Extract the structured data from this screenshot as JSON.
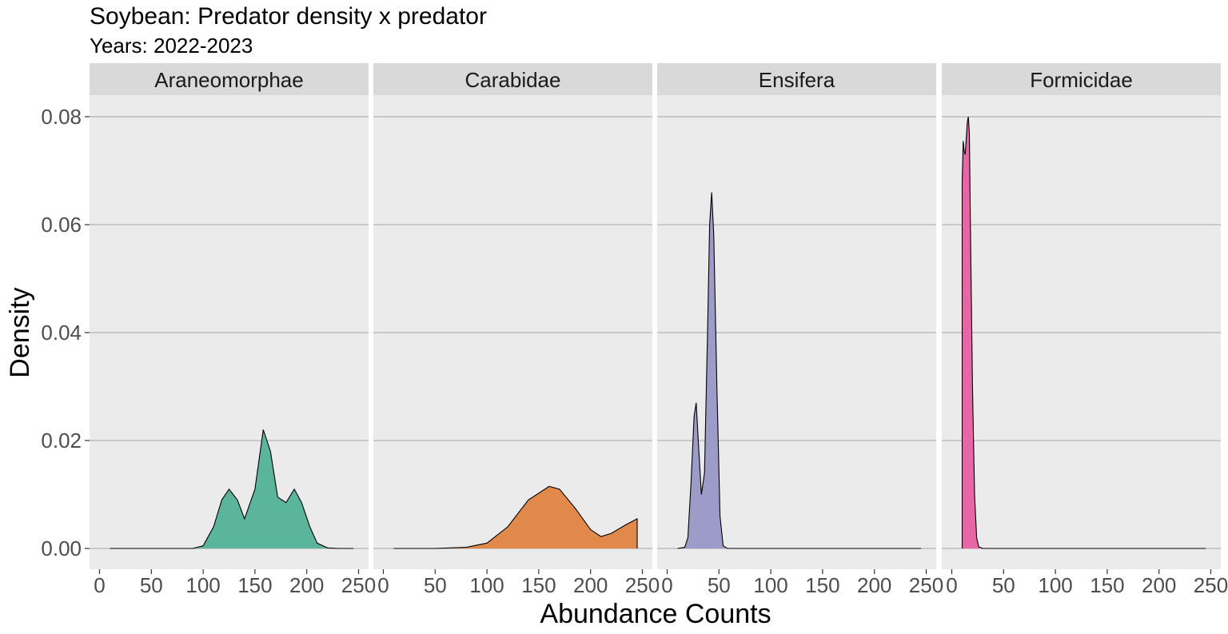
{
  "chart_data": {
    "type": "area",
    "title": "Soybean: Predator density x predator",
    "subtitle": "Years: 2022-2023",
    "xlabel": "Abundance Counts",
    "ylabel": "Density",
    "xlim": [
      0,
      250
    ],
    "ylim": [
      0,
      0.08
    ],
    "x_ticks": [
      0,
      50,
      100,
      150,
      200,
      250
    ],
    "x_tick_labels": [
      "0",
      "50",
      "100",
      "150",
      "200",
      "250"
    ],
    "y_ticks": [
      0,
      0.02,
      0.04,
      0.06,
      0.08
    ],
    "y_tick_labels": [
      "0.00",
      "0.02",
      "0.04",
      "0.06",
      "0.08"
    ],
    "grid": true,
    "legend": "none",
    "panels": [
      {
        "name": "Araneomorphae",
        "color": "#5bb59b",
        "x": [
          10,
          90,
          100,
          110,
          118,
          125,
          133,
          140,
          150,
          158,
          165,
          172,
          180,
          188,
          195,
          203,
          210,
          220,
          230,
          245
        ],
        "y": [
          0,
          0,
          0.0005,
          0.004,
          0.009,
          0.011,
          0.009,
          0.0055,
          0.011,
          0.022,
          0.018,
          0.0095,
          0.0085,
          0.011,
          0.0085,
          0.004,
          0.001,
          0.0001,
          0,
          0
        ]
      },
      {
        "name": "Carabidae",
        "color": "#e0894a",
        "x": [
          10,
          50,
          80,
          100,
          120,
          140,
          160,
          170,
          185,
          200,
          210,
          220,
          235,
          245
        ],
        "y": [
          0,
          0,
          0.0002,
          0.001,
          0.004,
          0.009,
          0.0115,
          0.011,
          0.0075,
          0.0035,
          0.0022,
          0.0028,
          0.0045,
          0.0055
        ]
      },
      {
        "name": "Ensifera",
        "color": "#9d9bc7",
        "x": [
          10,
          17,
          20,
          23,
          26,
          28,
          30,
          33,
          36,
          39,
          41,
          43,
          45,
          48,
          51,
          54,
          58,
          245
        ],
        "y": [
          0,
          0.0002,
          0.002,
          0.012,
          0.0245,
          0.027,
          0.02,
          0.01,
          0.014,
          0.04,
          0.06,
          0.066,
          0.058,
          0.03,
          0.006,
          0.0005,
          0,
          0
        ]
      },
      {
        "name": "Formicidae",
        "color": "#e766a6",
        "x": [
          10,
          11,
          12,
          13,
          14,
          15,
          16,
          17,
          18,
          20,
          22,
          24,
          26,
          30,
          245
        ],
        "y": [
          0.068,
          0.0755,
          0.0735,
          0.073,
          0.076,
          0.079,
          0.08,
          0.077,
          0.06,
          0.03,
          0.01,
          0.002,
          0.0003,
          0,
          0
        ]
      }
    ]
  }
}
